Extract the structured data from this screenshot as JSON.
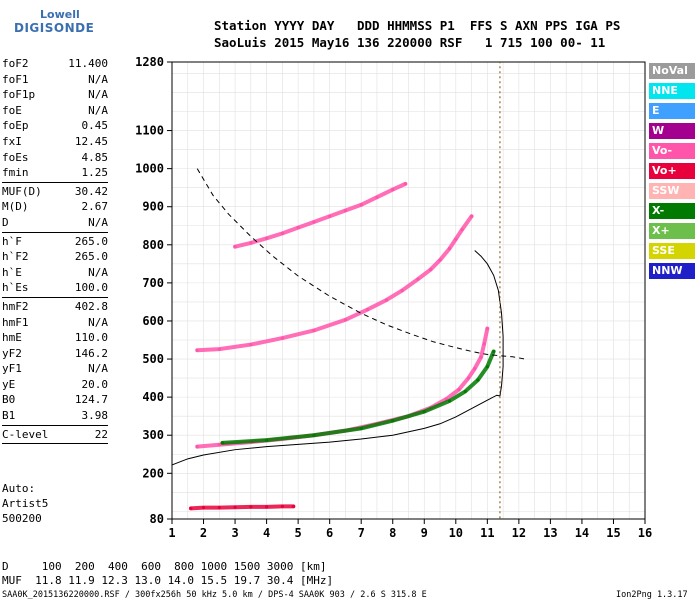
{
  "logo": {
    "line1": "Lowell",
    "line2": "DIGISONDE"
  },
  "header": {
    "row1": "Station YYYY DAY   DDD HHMMSS P1  FFS S AXN PPS IGA PS",
    "row2": "SaoLuis 2015 May16 136 220000 RSF   1 715 100 00- 11"
  },
  "params": [
    {
      "name": "foF2",
      "value": "11.400"
    },
    {
      "name": "foF1",
      "value": "N/A"
    },
    {
      "name": "foF1p",
      "value": "N/A"
    },
    {
      "name": "foE",
      "value": "N/A"
    },
    {
      "name": "foEp",
      "value": "0.45"
    },
    {
      "name": "fxI",
      "value": "12.45"
    },
    {
      "name": "foEs",
      "value": "4.85"
    },
    {
      "name": "fmin",
      "value": "1.25",
      "sep": true
    },
    {
      "name": "MUF(D)",
      "value": "30.42"
    },
    {
      "name": "M(D)",
      "value": "2.67"
    },
    {
      "name": "D",
      "value": "N/A",
      "sep": true
    },
    {
      "name": "h`F",
      "value": "265.0"
    },
    {
      "name": "h`F2",
      "value": "265.0"
    },
    {
      "name": "h`E",
      "value": "N/A"
    },
    {
      "name": "h`Es",
      "value": "100.0",
      "sep": true
    },
    {
      "name": "hmF2",
      "value": "402.8"
    },
    {
      "name": "hmF1",
      "value": "N/A"
    },
    {
      "name": "hmE",
      "value": "110.0"
    },
    {
      "name": "yF2",
      "value": "146.2"
    },
    {
      "name": "yF1",
      "value": "N/A"
    },
    {
      "name": "yE",
      "value": "20.0"
    },
    {
      "name": "B0",
      "value": "124.7"
    },
    {
      "name": "B1",
      "value": "3.98",
      "sep": true
    },
    {
      "name": "C-level",
      "value": "22",
      "sep": true
    }
  ],
  "autoscale": {
    "line1": "Auto:",
    "line2": "Artist5",
    "line3": "500200"
  },
  "legend": [
    {
      "label": "NoVal",
      "color": "#9b9b9b"
    },
    {
      "label": "NNE",
      "color": "#00e5ee"
    },
    {
      "label": "E",
      "color": "#3fa0ff"
    },
    {
      "label": "W",
      "color": "#a4008f"
    },
    {
      "label": "Vo-",
      "color": "#ff55aa"
    },
    {
      "label": "Vo+",
      "color": "#e8003c"
    },
    {
      "label": "SSW",
      "color": "#ffb3b3"
    },
    {
      "label": "X-",
      "color": "#007a00"
    },
    {
      "label": "X+",
      "color": "#6bbf4a"
    },
    {
      "label": "SSE",
      "color": "#d4d400"
    },
    {
      "label": "NNW",
      "color": "#2020c8"
    }
  ],
  "footer": {
    "row1": "D     100  200  400  600  800 1000 1500 3000 [km]",
    "row2": "MUF  11.8 11.9 12.3 13.0 14.0 15.5 19.7 30.4 [MHz]",
    "row3": "SAA0K_2015136220000.RSF / 300fx256h 50 kHz 5.0 km / DPS-4 SAA0K 903 / 2.6 S 315.8 E",
    "version": "Ion2Png 1.3.17"
  },
  "chart_data": {
    "type": "scatter",
    "xlim": [
      1,
      16
    ],
    "ylim": [
      80,
      1280
    ],
    "xticks": [
      1,
      2,
      3,
      4,
      5,
      6,
      7,
      8,
      9,
      10,
      11,
      12,
      13,
      14,
      15,
      16
    ],
    "yticks": [
      80,
      200,
      300,
      400,
      500,
      600,
      700,
      800,
      900,
      1000,
      1100,
      1280
    ],
    "grid": true,
    "traces": [
      {
        "name": "O-trace F2",
        "color": "#ff55aa",
        "x": [
          1.8,
          2.5,
          3.5,
          4.5,
          5.5,
          6.5,
          7.5,
          8.5,
          9.2,
          9.7,
          10.1,
          10.4,
          10.6,
          10.8,
          10.9,
          11.0
        ],
        "y": [
          270,
          275,
          282,
          290,
          300,
          312,
          330,
          350,
          372,
          395,
          420,
          450,
          475,
          505,
          540,
          580
        ]
      },
      {
        "name": "O-trace 2-hop",
        "color": "#ff55aa",
        "x": [
          1.8,
          2.5,
          3.5,
          4.5,
          5.5,
          6.5,
          7.2,
          7.8,
          8.3,
          8.8,
          9.2,
          9.5,
          9.8,
          10.0,
          10.2,
          10.5
        ],
        "y": [
          523,
          526,
          538,
          555,
          575,
          603,
          630,
          655,
          680,
          710,
          735,
          760,
          790,
          815,
          840,
          875
        ]
      },
      {
        "name": "O-trace 3-hop",
        "color": "#ff55aa",
        "x": [
          3.0,
          3.5,
          4.0,
          4.5,
          5.0,
          5.5,
          6.0,
          6.5,
          7.0,
          7.5,
          8.0,
          8.4
        ],
        "y": [
          795,
          805,
          817,
          830,
          845,
          860,
          875,
          890,
          905,
          925,
          945,
          960
        ]
      },
      {
        "name": "X-trace F2",
        "color": "#007a00",
        "x": [
          2.6,
          4.0,
          5.5,
          7.0,
          8.0,
          9.0,
          9.8,
          10.3,
          10.7,
          11.0,
          11.2
        ],
        "y": [
          280,
          287,
          300,
          318,
          338,
          362,
          390,
          415,
          445,
          480,
          520
        ]
      },
      {
        "name": "Es trace",
        "color": "#e8003c",
        "x": [
          1.6,
          2.0,
          2.5,
          3.0,
          3.5,
          4.0,
          4.5,
          4.85
        ],
        "y": [
          108,
          110,
          110,
          111,
          112,
          112,
          113,
          113
        ]
      },
      {
        "name": "N(h) profile",
        "color": "#000000",
        "x": [
          1.0,
          1.5,
          2.0,
          3.0,
          4.0,
          5.0,
          6.0,
          7.0,
          8.0,
          9.0,
          9.5,
          10.0,
          10.5,
          11.0,
          11.3,
          11.4
        ],
        "y": [
          222,
          238,
          248,
          262,
          270,
          276,
          282,
          290,
          300,
          318,
          330,
          348,
          370,
          392,
          405,
          403
        ]
      },
      {
        "name": "N(h) profile upper",
        "color": "#000000",
        "x": [
          11.4,
          11.45,
          11.5,
          11.5,
          11.45,
          11.35,
          11.2,
          11.0,
          10.8,
          10.6
        ],
        "y": [
          403,
          430,
          480,
          560,
          620,
          680,
          720,
          750,
          770,
          785
        ]
      },
      {
        "name": "MUF(D) curve",
        "color": "#000000",
        "x": [
          1.8,
          2.3,
          2.8,
          3.5,
          4.2,
          5.0,
          6.0,
          7.0,
          7.8,
          8.6,
          9.3,
          10.0,
          10.5,
          11.0,
          11.5,
          11.8,
          12.2
        ],
        "y": [
          1000,
          930,
          880,
          822,
          770,
          718,
          665,
          620,
          590,
          565,
          545,
          530,
          520,
          512,
          508,
          506,
          500
        ]
      },
      {
        "name": "vertical foF2",
        "color": "#7a4a00",
        "x": [
          11.4,
          11.4
        ],
        "y": [
          82,
          1280
        ]
      }
    ]
  }
}
